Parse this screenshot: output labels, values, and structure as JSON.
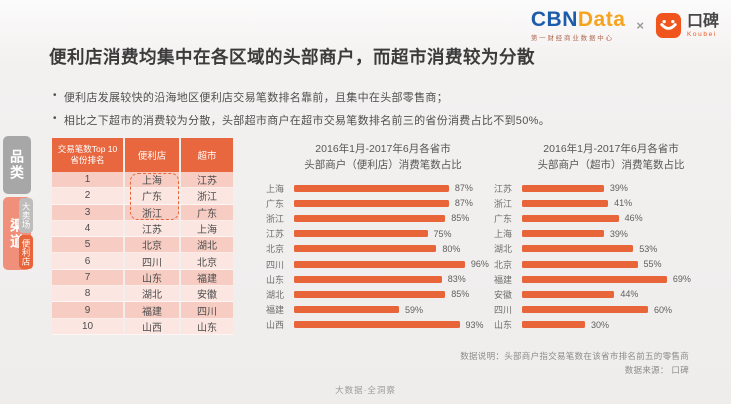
{
  "brand": {
    "cbn_blue": "CBN",
    "cbn_orange": "Data",
    "cbn_subtitle": "第一财经商业数据中心",
    "separator": "×",
    "koubei_cn": "口碑",
    "koubei_en": "Koubei",
    "koubei_color": "#f1551e"
  },
  "page": {
    "title": "便利店消费均集中在各区域的头部商户，而超市消费较为分散",
    "bullets": [
      "便利店发展较快的沿海地区便利店交易笔数排名靠前，且集中在头部零售商；",
      "相比之下超市的消费较为分散，头部超市商户在超市交易笔数排名前三的省份消费占比不到50%。"
    ],
    "footnote_note": "数据说明：头部商户指交易笔数在该省市排名前五的零售商",
    "footnote_source": "数据来源： 口碑",
    "watermark": "大数据·全洞察"
  },
  "sidebar": {
    "tabs": [
      {
        "label": "品类",
        "active": false
      },
      {
        "label": "渠道",
        "active": true
      }
    ],
    "subtabs": [
      {
        "label": "大卖场",
        "active": false
      },
      {
        "label": "便利店",
        "active": true
      }
    ]
  },
  "colors": {
    "accent": "#e8653a",
    "table_header": "#e8673f",
    "row_dark": "#f7ccc3",
    "row_light": "#fbe6e1"
  },
  "chart_data": [
    {
      "type": "table",
      "header": {
        "rank_line1": "交易笔数Top 10",
        "rank_line2": "省份排名",
        "col_convenience": "便利店",
        "col_supermarket": "超市"
      },
      "rows": [
        {
          "rank": "1",
          "cs": "上海",
          "sm": "江苏"
        },
        {
          "rank": "2",
          "cs": "广东",
          "sm": "浙江"
        },
        {
          "rank": "3",
          "cs": "浙江",
          "sm": "广东"
        },
        {
          "rank": "4",
          "cs": "江苏",
          "sm": "上海"
        },
        {
          "rank": "5",
          "cs": "北京",
          "sm": "湖北"
        },
        {
          "rank": "6",
          "cs": "四川",
          "sm": "北京"
        },
        {
          "rank": "7",
          "cs": "山东",
          "sm": "福建"
        },
        {
          "rank": "8",
          "cs": "湖北",
          "sm": "安徽"
        },
        {
          "rank": "9",
          "cs": "福建",
          "sm": "四川"
        },
        {
          "rank": "10",
          "cs": "山西",
          "sm": "山东"
        }
      ],
      "highlight": "便利店 Top3（上海、广东、浙江）虚线框标注"
    },
    {
      "type": "bar",
      "orientation": "horizontal",
      "title": "2016年1月-2017年6月各省市",
      "subtitle": "头部商户（便利店）消费笔数占比",
      "categories": [
        "上海",
        "广东",
        "浙江",
        "江苏",
        "北京",
        "四川",
        "山东",
        "湖北",
        "福建",
        "山西"
      ],
      "values": [
        87,
        87,
        85,
        75,
        80,
        96,
        83,
        85,
        59,
        93
      ],
      "unit": "%",
      "xlim": [
        0,
        100
      ],
      "bar_color": "#e8653a",
      "value_labels": true,
      "grid": false,
      "legend": false
    },
    {
      "type": "bar",
      "orientation": "horizontal",
      "title": "2016年1月-2017年6月各省市",
      "subtitle": "头部商户（超市）消费笔数占比",
      "categories": [
        "江苏",
        "浙江",
        "广东",
        "上海",
        "湖北",
        "北京",
        "福建",
        "安徽",
        "四川",
        "山东"
      ],
      "values": [
        39,
        41,
        46,
        39,
        53,
        55,
        69,
        44,
        60,
        30
      ],
      "unit": "%",
      "xlim": [
        0,
        100
      ],
      "bar_color": "#e8653a",
      "value_labels": true,
      "grid": false,
      "legend": false
    }
  ]
}
